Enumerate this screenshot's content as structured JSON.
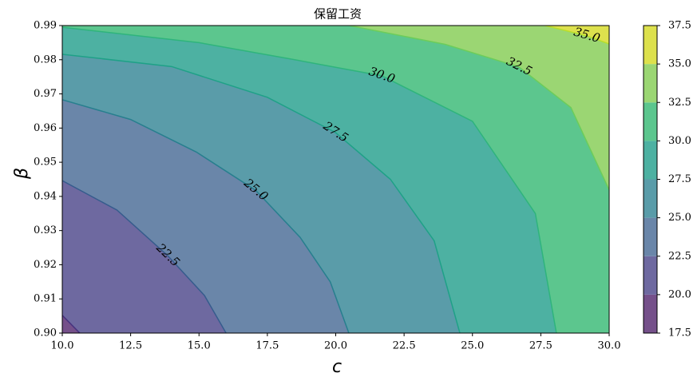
{
  "chart_data": {
    "type": "contour",
    "title": "保留工资",
    "xlabel": "c",
    "ylabel": "β",
    "xlim": [
      10,
      30
    ],
    "ylim": [
      0.9,
      0.99
    ],
    "xticks": [
      {
        "value": 10,
        "label": "10.0"
      },
      12.5,
      {
        "value": 15,
        "label": "15.0"
      },
      17.5,
      {
        "value": 20,
        "label": "20.0"
      },
      22.5,
      {
        "value": 25,
        "label": "25.0"
      },
      27.5,
      {
        "value": 30,
        "label": "30.0"
      }
    ],
    "yticks": [
      {
        "value": 0.9,
        "label": "0.90"
      },
      0.91,
      0.92,
      0.93,
      0.94,
      0.95,
      0.96,
      0.97,
      0.98,
      0.99
    ],
    "levels": [
      17.5,
      {
        "value": 20,
        "label": "20.0"
      },
      22.5,
      {
        "value": 25,
        "label": "25.0"
      },
      27.5,
      {
        "value": 30,
        "label": "30.0"
      },
      32.5,
      {
        "value": 35,
        "label": "35.0"
      },
      37.5
    ],
    "band_colors": [
      "#75508a",
      "#6e69a0",
      "#6a86a9",
      "#5a9ca9",
      "#4db1a2",
      "#5cc68e",
      "#9bd673",
      "#dde14d"
    ],
    "contours": [
      {
        "level": 20,
        "color": "#46327e",
        "x": [
          10,
          10.64
        ],
        "y": [
          0.9052,
          0.9
        ]
      },
      {
        "level": 22.5,
        "label": "22.5",
        "color": "#365c8d",
        "x": [
          10,
          12,
          13.85,
          15.2,
          15.99
        ],
        "y": [
          0.9446,
          0.936,
          0.9227,
          0.911,
          0.9
        ]
      },
      {
        "level": 25,
        "label": "25.0",
        "color": "#277f8e",
        "x": [
          10,
          12.5,
          14.9,
          17.07,
          18.7,
          19.8,
          20.48
        ],
        "y": [
          0.9683,
          0.9625,
          0.953,
          0.9418,
          0.928,
          0.915,
          0.9
        ]
      },
      {
        "level": 27.5,
        "label": "27.5",
        "color": "#1fa187",
        "x": [
          10,
          14,
          17.5,
          19.99,
          22,
          23.6,
          24.54
        ],
        "y": [
          0.9816,
          0.978,
          0.969,
          0.9587,
          0.945,
          0.927,
          0.9
        ]
      },
      {
        "level": 30,
        "label": "30.0",
        "color": "#2fb47c",
        "x": [
          10,
          15,
          18.5,
          21.68,
          25,
          27.3,
          28.07
        ],
        "y": [
          0.9895,
          0.985,
          0.98,
          0.9753,
          0.962,
          0.935,
          0.9
        ]
      },
      {
        "level": 32.5,
        "label": "32.5",
        "color": "#6ccd5a",
        "x": [
          20.5,
          24,
          26.7,
          28.6,
          30
        ],
        "y": [
          0.99,
          0.9845,
          0.9779,
          0.966,
          0.9419
        ]
      },
      {
        "level": 35,
        "label": "35.0",
        "color": "#b8de29",
        "x": [
          27.66,
          29.18,
          30
        ],
        "y": [
          0.99,
          0.987,
          0.9846
        ]
      }
    ]
  }
}
